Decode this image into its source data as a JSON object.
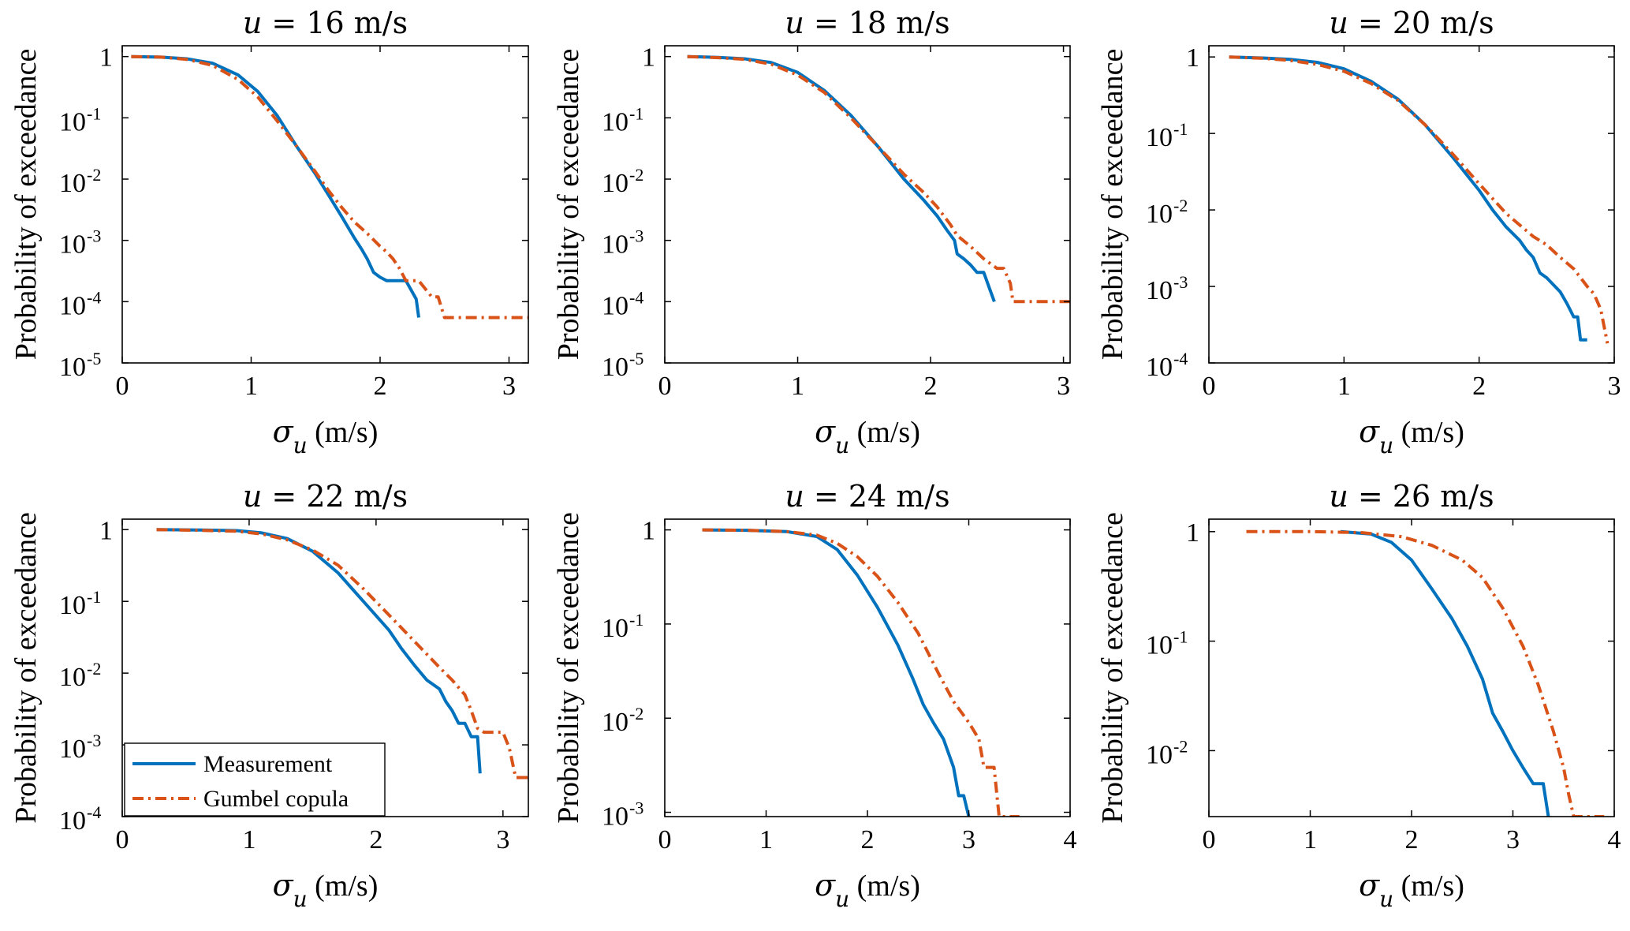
{
  "chart_data": [
    {
      "type": "line",
      "title": "u = 16 m/s",
      "title_var": "u",
      "title_rest": "= 16 m/s",
      "xlabel": "σu (m/s)",
      "xlabel_sym": "σ",
      "xlabel_sub": "u",
      "xlabel_unit": "(m/s)",
      "ylabel": "Probability of exceedance",
      "xscale": "linear",
      "yscale": "log",
      "xlim": [
        0,
        3.15
      ],
      "ylim": [
        1e-05,
        1.5
      ],
      "xticks": [
        "0",
        "1",
        "2",
        "3"
      ],
      "xtick_values": [
        0,
        1,
        2,
        3
      ],
      "yticks": [
        {
          "value": 1,
          "base": "1",
          "exp": ""
        },
        {
          "value": 0.1,
          "base": "10",
          "exp": "-1"
        },
        {
          "value": 0.01,
          "base": "10",
          "exp": "-2"
        },
        {
          "value": 0.001,
          "base": "10",
          "exp": "-3"
        },
        {
          "value": 0.0001,
          "base": "10",
          "exp": "-4"
        },
        {
          "value": 1e-05,
          "base": "10",
          "exp": "-5"
        }
      ],
      "series": [
        {
          "name": "Measurement",
          "color": "#0072BD",
          "dash": "solid",
          "x": [
            0.07,
            0.3,
            0.5,
            0.7,
            0.9,
            1.05,
            1.2,
            1.35,
            1.5,
            1.6,
            1.7,
            1.8,
            1.86,
            1.9,
            1.95,
            2.0,
            2.05,
            2.1,
            2.2,
            2.28,
            2.3
          ],
          "y": [
            1,
            0.98,
            0.92,
            0.78,
            0.5,
            0.27,
            0.11,
            0.035,
            0.012,
            0.0055,
            0.0025,
            0.0011,
            0.0007,
            0.0005,
            0.0003,
            0.00025,
            0.00022,
            0.00022,
            0.00022,
            0.00011,
            5.5e-05
          ]
        },
        {
          "name": "Gumbel copula",
          "color": "#D95319",
          "dash": "dashdot",
          "x": [
            0.07,
            0.3,
            0.5,
            0.7,
            0.9,
            1.05,
            1.2,
            1.35,
            1.5,
            1.6,
            1.7,
            1.8,
            1.9,
            2.0,
            2.05,
            2.1,
            2.15,
            2.2,
            2.3,
            2.4,
            2.45,
            2.5,
            2.55,
            3.15
          ],
          "y": [
            1,
            0.98,
            0.9,
            0.72,
            0.42,
            0.22,
            0.09,
            0.035,
            0.013,
            0.0065,
            0.0035,
            0.002,
            0.0013,
            0.0008,
            0.00065,
            0.0005,
            0.00035,
            0.00022,
            0.00022,
            0.00012,
            0.00012,
            5.5e-05,
            5.5e-05,
            5.5e-05
          ]
        }
      ]
    },
    {
      "type": "line",
      "title": "u = 18 m/s",
      "title_var": "u",
      "title_rest": "= 18 m/s",
      "xlabel": "σu (m/s)",
      "xlabel_sym": "σ",
      "xlabel_sub": "u",
      "xlabel_unit": "(m/s)",
      "ylabel": "Probability of exceedance",
      "xscale": "linear",
      "yscale": "log",
      "xlim": [
        0,
        3.05
      ],
      "ylim": [
        1e-05,
        1.5
      ],
      "xticks": [
        "0",
        "1",
        "2",
        "3"
      ],
      "xtick_values": [
        0,
        1,
        2,
        3
      ],
      "yticks": [
        {
          "value": 1,
          "base": "1",
          "exp": ""
        },
        {
          "value": 0.1,
          "base": "10",
          "exp": "-1"
        },
        {
          "value": 0.01,
          "base": "10",
          "exp": "-2"
        },
        {
          "value": 0.001,
          "base": "10",
          "exp": "-3"
        },
        {
          "value": 0.0001,
          "base": "10",
          "exp": "-4"
        },
        {
          "value": 1e-05,
          "base": "10",
          "exp": "-5"
        }
      ],
      "series": [
        {
          "name": "Measurement",
          "color": "#0072BD",
          "dash": "solid",
          "x": [
            0.17,
            0.4,
            0.6,
            0.8,
            1.0,
            1.2,
            1.4,
            1.6,
            1.8,
            1.95,
            2.05,
            2.12,
            2.18,
            2.2,
            2.25,
            2.3,
            2.35,
            2.4,
            2.45,
            2.48
          ],
          "y": [
            1,
            0.97,
            0.92,
            0.8,
            0.55,
            0.28,
            0.11,
            0.035,
            0.01,
            0.0045,
            0.0025,
            0.0015,
            0.001,
            0.0006,
            0.0005,
            0.0004,
            0.0003,
            0.0003,
            0.00015,
            0.0001
          ]
        },
        {
          "name": "Gumbel copula",
          "color": "#D95319",
          "dash": "dashdot",
          "x": [
            0.17,
            0.4,
            0.6,
            0.8,
            1.0,
            1.2,
            1.4,
            1.6,
            1.8,
            1.95,
            2.05,
            2.15,
            2.2,
            2.3,
            2.4,
            2.5,
            2.55,
            2.6,
            2.62,
            3.05
          ],
          "y": [
            1,
            0.96,
            0.9,
            0.75,
            0.5,
            0.26,
            0.1,
            0.035,
            0.012,
            0.006,
            0.0035,
            0.0018,
            0.0012,
            0.0008,
            0.0005,
            0.00035,
            0.00035,
            0.0002,
            0.0001,
            0.0001
          ]
        }
      ]
    },
    {
      "type": "line",
      "title": "u = 20 m/s",
      "title_var": "u",
      "title_rest": "= 20 m/s",
      "xlabel": "σu (m/s)",
      "xlabel_sym": "σ",
      "xlabel_sub": "u",
      "xlabel_unit": "(m/s)",
      "ylabel": "Probability of exceedance",
      "xscale": "linear",
      "yscale": "log",
      "xlim": [
        0,
        3.0
      ],
      "ylim": [
        0.0001,
        1.4
      ],
      "xticks": [
        "0",
        "1",
        "2",
        "3"
      ],
      "xtick_values": [
        0,
        1,
        2,
        3
      ],
      "yticks": [
        {
          "value": 1,
          "base": "1",
          "exp": ""
        },
        {
          "value": 0.1,
          "base": "10",
          "exp": "-1"
        },
        {
          "value": 0.01,
          "base": "10",
          "exp": "-2"
        },
        {
          "value": 0.001,
          "base": "10",
          "exp": "-3"
        },
        {
          "value": 0.0001,
          "base": "10",
          "exp": "-4"
        }
      ],
      "series": [
        {
          "name": "Measurement",
          "color": "#0072BD",
          "dash": "solid",
          "x": [
            0.15,
            0.4,
            0.6,
            0.8,
            1.0,
            1.2,
            1.4,
            1.6,
            1.8,
            2.0,
            2.1,
            2.2,
            2.3,
            2.35,
            2.4,
            2.45,
            2.5,
            2.6,
            2.65,
            2.7,
            2.73,
            2.75,
            2.8
          ],
          "y": [
            1,
            0.97,
            0.93,
            0.85,
            0.7,
            0.48,
            0.28,
            0.13,
            0.05,
            0.018,
            0.01,
            0.006,
            0.004,
            0.003,
            0.0024,
            0.0015,
            0.0013,
            0.00085,
            0.0006,
            0.0004,
            0.0004,
            0.0002,
            0.0002
          ]
        },
        {
          "name": "Gumbel copula",
          "color": "#D95319",
          "dash": "dashdot",
          "x": [
            0.15,
            0.4,
            0.6,
            0.8,
            1.0,
            1.2,
            1.4,
            1.6,
            1.8,
            2.0,
            2.2,
            2.4,
            2.5,
            2.6,
            2.7,
            2.8,
            2.85,
            2.9,
            2.95
          ],
          "y": [
            1,
            0.96,
            0.9,
            0.8,
            0.65,
            0.45,
            0.27,
            0.13,
            0.055,
            0.022,
            0.009,
            0.0045,
            0.0035,
            0.0024,
            0.0017,
            0.001,
            0.0008,
            0.0005,
            0.00018
          ]
        }
      ]
    },
    {
      "type": "line",
      "title": "u = 22 m/s",
      "title_var": "u",
      "title_rest": "= 22 m/s",
      "xlabel": "σu (m/s)",
      "xlabel_sym": "σ",
      "xlabel_sub": "u",
      "xlabel_unit": "(m/s)",
      "ylabel": "Probability of exceedance",
      "xscale": "linear",
      "yscale": "log",
      "xlim": [
        0,
        3.2
      ],
      "ylim": [
        0.0001,
        1.4
      ],
      "xticks": [
        "0",
        "1",
        "2",
        "3"
      ],
      "xtick_values": [
        0,
        1,
        2,
        3
      ],
      "yticks": [
        {
          "value": 1,
          "base": "1",
          "exp": ""
        },
        {
          "value": 0.1,
          "base": "10",
          "exp": "-1"
        },
        {
          "value": 0.01,
          "base": "10",
          "exp": "-2"
        },
        {
          "value": 0.001,
          "base": "10",
          "exp": "-3"
        },
        {
          "value": 0.0001,
          "base": "10",
          "exp": "-4"
        }
      ],
      "series": [
        {
          "name": "Measurement",
          "color": "#0072BD",
          "dash": "solid",
          "x": [
            0.27,
            0.6,
            0.9,
            1.1,
            1.3,
            1.5,
            1.7,
            1.9,
            2.1,
            2.2,
            2.3,
            2.4,
            2.5,
            2.55,
            2.6,
            2.65,
            2.7,
            2.75,
            2.8,
            2.82
          ],
          "y": [
            1,
            0.99,
            0.97,
            0.9,
            0.75,
            0.5,
            0.25,
            0.1,
            0.04,
            0.022,
            0.013,
            0.008,
            0.006,
            0.004,
            0.003,
            0.002,
            0.002,
            0.0013,
            0.0013,
            0.0004
          ]
        },
        {
          "name": "Gumbel copula",
          "color": "#D95319",
          "dash": "dashdot",
          "x": [
            0.27,
            0.6,
            0.9,
            1.1,
            1.3,
            1.5,
            1.7,
            1.9,
            2.1,
            2.3,
            2.5,
            2.6,
            2.7,
            2.75,
            2.8,
            2.85,
            3.0,
            3.05,
            3.1,
            3.2
          ],
          "y": [
            1,
            0.98,
            0.95,
            0.87,
            0.72,
            0.52,
            0.32,
            0.15,
            0.065,
            0.028,
            0.012,
            0.008,
            0.005,
            0.003,
            0.0017,
            0.0015,
            0.0015,
            0.0009,
            0.00035,
            0.00035
          ]
        }
      ]
    },
    {
      "type": "line",
      "title": "u = 24 m/s",
      "title_var": "u",
      "title_rest": "= 24 m/s",
      "xlabel": "σu (m/s)",
      "xlabel_sym": "σ",
      "xlabel_sub": "u",
      "xlabel_unit": "(m/s)",
      "ylabel": "Probability of exceedance",
      "xscale": "linear",
      "yscale": "log",
      "xlim": [
        0,
        4
      ],
      "ylim": [
        0.0009,
        1.3
      ],
      "xticks": [
        "0",
        "1",
        "2",
        "3",
        "4"
      ],
      "xtick_values": [
        0,
        1,
        2,
        3,
        4
      ],
      "yticks": [
        {
          "value": 1,
          "base": "1",
          "exp": ""
        },
        {
          "value": 0.1,
          "base": "10",
          "exp": "-1"
        },
        {
          "value": 0.01,
          "base": "10",
          "exp": "-2"
        },
        {
          "value": 0.001,
          "base": "10",
          "exp": "-3"
        }
      ],
      "series": [
        {
          "name": "Measurement",
          "color": "#0072BD",
          "dash": "solid",
          "x": [
            0.37,
            0.8,
            1.2,
            1.5,
            1.7,
            1.9,
            2.1,
            2.3,
            2.45,
            2.55,
            2.65,
            2.75,
            2.85,
            2.9,
            2.95,
            3.0
          ],
          "y": [
            1,
            0.99,
            0.96,
            0.85,
            0.62,
            0.33,
            0.15,
            0.06,
            0.026,
            0.014,
            0.009,
            0.006,
            0.003,
            0.0015,
            0.0015,
            0.0009
          ]
        },
        {
          "name": "Gumbel copula",
          "color": "#D95319",
          "dash": "dashdot",
          "x": [
            0.37,
            0.8,
            1.2,
            1.5,
            1.7,
            1.9,
            2.1,
            2.3,
            2.5,
            2.7,
            2.85,
            3.0,
            3.1,
            3.15,
            3.25,
            3.3,
            3.35,
            3.5
          ],
          "y": [
            1,
            0.99,
            0.96,
            0.88,
            0.72,
            0.52,
            0.32,
            0.17,
            0.08,
            0.03,
            0.015,
            0.009,
            0.006,
            0.003,
            0.003,
            0.0009,
            0.0009,
            0.0009
          ]
        }
      ]
    },
    {
      "type": "line",
      "title": "u = 26 m/s",
      "title_var": "u",
      "title_rest": "= 26 m/s",
      "xlabel": "σu (m/s)",
      "xlabel_sym": "σ",
      "xlabel_sub": "u",
      "xlabel_unit": "(m/s)",
      "ylabel": "Probability of exceedance",
      "xscale": "linear",
      "yscale": "log",
      "xlim": [
        0,
        4
      ],
      "ylim": [
        0.0025,
        1.3
      ],
      "xticks": [
        "0",
        "1",
        "2",
        "3",
        "4"
      ],
      "xtick_values": [
        0,
        1,
        2,
        3,
        4
      ],
      "yticks": [
        {
          "value": 1,
          "base": "1",
          "exp": ""
        },
        {
          "value": 0.1,
          "base": "10",
          "exp": "-1"
        },
        {
          "value": 0.01,
          "base": "10",
          "exp": "-2"
        }
      ],
      "series": [
        {
          "name": "Measurement",
          "color": "#0072BD",
          "dash": "solid",
          "x": [
            1.3,
            1.6,
            1.8,
            2.0,
            2.2,
            2.4,
            2.55,
            2.7,
            2.8,
            2.9,
            3.0,
            3.1,
            3.2,
            3.3,
            3.35
          ],
          "y": [
            1,
            0.95,
            0.8,
            0.55,
            0.3,
            0.16,
            0.09,
            0.045,
            0.022,
            0.015,
            0.01,
            0.007,
            0.005,
            0.005,
            0.0025
          ]
        },
        {
          "name": "Gumbel copula",
          "color": "#D95319",
          "dash": "dashdot",
          "x": [
            0.37,
            1.0,
            1.5,
            1.9,
            2.2,
            2.5,
            2.7,
            2.9,
            3.1,
            3.25,
            3.4,
            3.5,
            3.55,
            3.6,
            3.9
          ],
          "y": [
            1,
            1,
            0.98,
            0.9,
            0.75,
            0.55,
            0.38,
            0.2,
            0.09,
            0.04,
            0.015,
            0.007,
            0.004,
            0.0025,
            0.0025
          ]
        }
      ]
    }
  ],
  "legend": {
    "entries": [
      "Measurement",
      "Gumbel copula"
    ],
    "placement": "bottom-left of panel 4"
  }
}
